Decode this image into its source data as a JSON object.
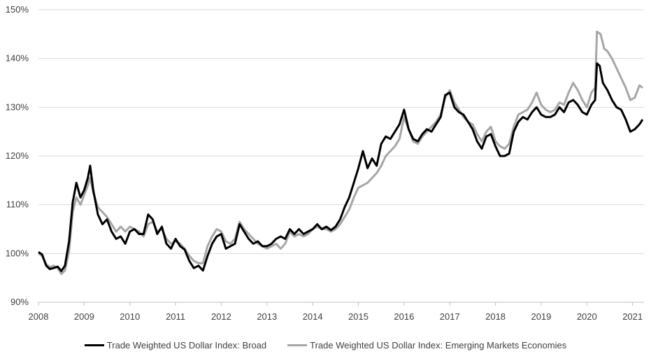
{
  "chart_data": {
    "type": "line",
    "title": "",
    "xlabel": "",
    "ylabel": "",
    "x_ticks": [
      "2008",
      "2009",
      "2010",
      "2011",
      "2012",
      "2013",
      "2014",
      "2015",
      "2016",
      "2017",
      "2018",
      "2019",
      "2020",
      "2021"
    ],
    "y_ticks": [
      "90%",
      "100%",
      "110%",
      "120%",
      "130%",
      "140%",
      "150%"
    ],
    "xlim": [
      2008.0,
      2021.25
    ],
    "ylim": [
      90,
      150
    ],
    "grid": "horizontal",
    "legend_position": "bottom",
    "series": [
      {
        "name": "Trade Weighted US Dollar Index: Broad",
        "color": "#000000",
        "points": [
          [
            2008.0,
            100.3
          ],
          [
            2008.08,
            99.8
          ],
          [
            2008.17,
            97.5
          ],
          [
            2008.25,
            96.8
          ],
          [
            2008.33,
            97.0
          ],
          [
            2008.42,
            97.3
          ],
          [
            2008.5,
            96.4
          ],
          [
            2008.58,
            97.5
          ],
          [
            2008.67,
            102.5
          ],
          [
            2008.75,
            110.5
          ],
          [
            2008.83,
            114.5
          ],
          [
            2008.92,
            111.5
          ],
          [
            2009.0,
            113.0
          ],
          [
            2009.08,
            115.5
          ],
          [
            2009.13,
            118.0
          ],
          [
            2009.2,
            113.0
          ],
          [
            2009.3,
            108.0
          ],
          [
            2009.4,
            106.0
          ],
          [
            2009.5,
            107.0
          ],
          [
            2009.6,
            104.5
          ],
          [
            2009.7,
            103.0
          ],
          [
            2009.8,
            103.5
          ],
          [
            2009.9,
            102.0
          ],
          [
            2010.0,
            104.5
          ],
          [
            2010.1,
            105.0
          ],
          [
            2010.2,
            104.0
          ],
          [
            2010.3,
            104.0
          ],
          [
            2010.4,
            108.0
          ],
          [
            2010.5,
            107.0
          ],
          [
            2010.6,
            104.0
          ],
          [
            2010.7,
            105.5
          ],
          [
            2010.8,
            102.0
          ],
          [
            2010.9,
            101.0
          ],
          [
            2011.0,
            103.0
          ],
          [
            2011.1,
            101.5
          ],
          [
            2011.2,
            100.8
          ],
          [
            2011.3,
            98.5
          ],
          [
            2011.4,
            97.0
          ],
          [
            2011.5,
            97.5
          ],
          [
            2011.6,
            96.5
          ],
          [
            2011.7,
            99.5
          ],
          [
            2011.8,
            102.0
          ],
          [
            2011.9,
            103.5
          ],
          [
            2012.0,
            104.0
          ],
          [
            2012.1,
            101.0
          ],
          [
            2012.2,
            101.5
          ],
          [
            2012.3,
            102.0
          ],
          [
            2012.4,
            106.0
          ],
          [
            2012.5,
            104.5
          ],
          [
            2012.6,
            103.0
          ],
          [
            2012.7,
            102.0
          ],
          [
            2012.8,
            102.5
          ],
          [
            2012.9,
            101.5
          ],
          [
            2013.0,
            101.5
          ],
          [
            2013.1,
            102.0
          ],
          [
            2013.2,
            103.0
          ],
          [
            2013.3,
            103.5
          ],
          [
            2013.4,
            103.0
          ],
          [
            2013.5,
            105.0
          ],
          [
            2013.6,
            104.0
          ],
          [
            2013.7,
            105.0
          ],
          [
            2013.8,
            104.0
          ],
          [
            2013.9,
            104.5
          ],
          [
            2014.0,
            105.0
          ],
          [
            2014.1,
            106.0
          ],
          [
            2014.2,
            105.0
          ],
          [
            2014.3,
            105.5
          ],
          [
            2014.4,
            104.8
          ],
          [
            2014.5,
            105.5
          ],
          [
            2014.6,
            107.0
          ],
          [
            2014.7,
            109.5
          ],
          [
            2014.8,
            111.5
          ],
          [
            2014.9,
            114.5
          ],
          [
            2015.0,
            117.5
          ],
          [
            2015.1,
            121.0
          ],
          [
            2015.2,
            117.5
          ],
          [
            2015.3,
            119.5
          ],
          [
            2015.4,
            118.0
          ],
          [
            2015.5,
            122.5
          ],
          [
            2015.6,
            124.0
          ],
          [
            2015.7,
            123.5
          ],
          [
            2015.8,
            125.0
          ],
          [
            2015.9,
            126.5
          ],
          [
            2016.0,
            129.5
          ],
          [
            2016.1,
            125.5
          ],
          [
            2016.2,
            123.5
          ],
          [
            2016.3,
            123.0
          ],
          [
            2016.4,
            124.5
          ],
          [
            2016.5,
            125.5
          ],
          [
            2016.6,
            125.0
          ],
          [
            2016.7,
            126.5
          ],
          [
            2016.8,
            128.0
          ],
          [
            2016.9,
            132.5
          ],
          [
            2017.0,
            133.0
          ],
          [
            2017.1,
            130.0
          ],
          [
            2017.2,
            129.0
          ],
          [
            2017.3,
            128.5
          ],
          [
            2017.4,
            127.0
          ],
          [
            2017.5,
            125.5
          ],
          [
            2017.6,
            123.0
          ],
          [
            2017.7,
            121.5
          ],
          [
            2017.8,
            124.0
          ],
          [
            2017.9,
            124.5
          ],
          [
            2018.0,
            122.0
          ],
          [
            2018.1,
            120.0
          ],
          [
            2018.2,
            120.0
          ],
          [
            2018.3,
            120.5
          ],
          [
            2018.4,
            125.0
          ],
          [
            2018.5,
            127.0
          ],
          [
            2018.6,
            128.0
          ],
          [
            2018.7,
            127.5
          ],
          [
            2018.8,
            129.0
          ],
          [
            2018.9,
            130.0
          ],
          [
            2019.0,
            128.5
          ],
          [
            2019.1,
            128.0
          ],
          [
            2019.2,
            128.0
          ],
          [
            2019.3,
            128.5
          ],
          [
            2019.4,
            130.0
          ],
          [
            2019.5,
            129.0
          ],
          [
            2019.6,
            131.0
          ],
          [
            2019.7,
            131.5
          ],
          [
            2019.8,
            130.5
          ],
          [
            2019.9,
            129.0
          ],
          [
            2020.0,
            128.5
          ],
          [
            2020.1,
            130.5
          ],
          [
            2020.18,
            131.5
          ],
          [
            2020.22,
            139.0
          ],
          [
            2020.28,
            138.5
          ],
          [
            2020.35,
            135.0
          ],
          [
            2020.45,
            133.5
          ],
          [
            2020.55,
            131.5
          ],
          [
            2020.65,
            130.0
          ],
          [
            2020.75,
            129.5
          ],
          [
            2020.85,
            127.5
          ],
          [
            2020.95,
            125.0
          ],
          [
            2021.05,
            125.5
          ],
          [
            2021.15,
            126.5
          ],
          [
            2021.22,
            127.5
          ]
        ]
      },
      {
        "name": "Trade Weighted US Dollar Index: Emerging Markets Economies",
        "color": "#a6a6a6",
        "points": [
          [
            2008.0,
            100.0
          ],
          [
            2008.08,
            99.5
          ],
          [
            2008.17,
            97.8
          ],
          [
            2008.25,
            97.2
          ],
          [
            2008.33,
            97.5
          ],
          [
            2008.42,
            97.0
          ],
          [
            2008.5,
            95.8
          ],
          [
            2008.58,
            96.5
          ],
          [
            2008.67,
            100.5
          ],
          [
            2008.75,
            108.5
          ],
          [
            2008.83,
            111.5
          ],
          [
            2008.92,
            110.0
          ],
          [
            2009.0,
            112.0
          ],
          [
            2009.08,
            114.0
          ],
          [
            2009.13,
            115.5
          ],
          [
            2009.2,
            112.5
          ],
          [
            2009.3,
            109.5
          ],
          [
            2009.4,
            108.5
          ],
          [
            2009.5,
            107.5
          ],
          [
            2009.6,
            106.0
          ],
          [
            2009.7,
            104.5
          ],
          [
            2009.8,
            105.5
          ],
          [
            2009.9,
            104.5
          ],
          [
            2010.0,
            105.5
          ],
          [
            2010.1,
            105.0
          ],
          [
            2010.2,
            104.5
          ],
          [
            2010.3,
            103.5
          ],
          [
            2010.4,
            106.0
          ],
          [
            2010.5,
            106.5
          ],
          [
            2010.6,
            104.5
          ],
          [
            2010.7,
            105.0
          ],
          [
            2010.8,
            103.0
          ],
          [
            2010.9,
            102.0
          ],
          [
            2011.0,
            102.5
          ],
          [
            2011.1,
            102.0
          ],
          [
            2011.2,
            101.0
          ],
          [
            2011.3,
            99.5
          ],
          [
            2011.4,
            98.5
          ],
          [
            2011.5,
            98.0
          ],
          [
            2011.6,
            98.0
          ],
          [
            2011.7,
            101.5
          ],
          [
            2011.8,
            103.5
          ],
          [
            2011.9,
            105.0
          ],
          [
            2012.0,
            104.5
          ],
          [
            2012.1,
            102.5
          ],
          [
            2012.2,
            102.0
          ],
          [
            2012.3,
            103.0
          ],
          [
            2012.4,
            106.5
          ],
          [
            2012.5,
            105.0
          ],
          [
            2012.6,
            104.0
          ],
          [
            2012.7,
            103.0
          ],
          [
            2012.8,
            102.0
          ],
          [
            2012.9,
            101.5
          ],
          [
            2013.0,
            101.0
          ],
          [
            2013.1,
            101.5
          ],
          [
            2013.2,
            102.0
          ],
          [
            2013.3,
            101.0
          ],
          [
            2013.4,
            102.0
          ],
          [
            2013.5,
            104.5
          ],
          [
            2013.6,
            103.5
          ],
          [
            2013.7,
            104.0
          ],
          [
            2013.8,
            103.5
          ],
          [
            2013.9,
            104.0
          ],
          [
            2014.0,
            105.0
          ],
          [
            2014.1,
            105.5
          ],
          [
            2014.2,
            105.0
          ],
          [
            2014.3,
            105.0
          ],
          [
            2014.4,
            104.5
          ],
          [
            2014.5,
            105.0
          ],
          [
            2014.6,
            106.0
          ],
          [
            2014.7,
            107.5
          ],
          [
            2014.8,
            109.0
          ],
          [
            2014.9,
            111.5
          ],
          [
            2015.0,
            113.5
          ],
          [
            2015.1,
            114.0
          ],
          [
            2015.2,
            114.5
          ],
          [
            2015.3,
            115.5
          ],
          [
            2015.4,
            116.5
          ],
          [
            2015.5,
            118.0
          ],
          [
            2015.6,
            120.0
          ],
          [
            2015.7,
            121.0
          ],
          [
            2015.8,
            122.0
          ],
          [
            2015.9,
            123.5
          ],
          [
            2016.0,
            128.0
          ],
          [
            2016.1,
            125.5
          ],
          [
            2016.2,
            123.0
          ],
          [
            2016.3,
            122.5
          ],
          [
            2016.4,
            124.0
          ],
          [
            2016.5,
            125.0
          ],
          [
            2016.6,
            126.0
          ],
          [
            2016.7,
            127.0
          ],
          [
            2016.8,
            128.5
          ],
          [
            2016.9,
            132.0
          ],
          [
            2017.0,
            133.5
          ],
          [
            2017.1,
            131.0
          ],
          [
            2017.2,
            129.5
          ],
          [
            2017.3,
            128.0
          ],
          [
            2017.4,
            127.0
          ],
          [
            2017.5,
            126.5
          ],
          [
            2017.6,
            124.5
          ],
          [
            2017.7,
            123.0
          ],
          [
            2017.8,
            125.0
          ],
          [
            2017.9,
            126.0
          ],
          [
            2018.0,
            123.0
          ],
          [
            2018.1,
            122.0
          ],
          [
            2018.2,
            121.5
          ],
          [
            2018.3,
            122.5
          ],
          [
            2018.4,
            126.0
          ],
          [
            2018.5,
            128.5
          ],
          [
            2018.6,
            129.0
          ],
          [
            2018.7,
            129.5
          ],
          [
            2018.8,
            131.0
          ],
          [
            2018.9,
            133.0
          ],
          [
            2019.0,
            130.5
          ],
          [
            2019.1,
            129.5
          ],
          [
            2019.2,
            129.0
          ],
          [
            2019.3,
            129.5
          ],
          [
            2019.4,
            131.0
          ],
          [
            2019.5,
            130.5
          ],
          [
            2019.6,
            133.0
          ],
          [
            2019.7,
            135.0
          ],
          [
            2019.8,
            133.5
          ],
          [
            2019.9,
            131.5
          ],
          [
            2020.0,
            130.0
          ],
          [
            2020.1,
            133.0
          ],
          [
            2020.18,
            134.0
          ],
          [
            2020.22,
            145.5
          ],
          [
            2020.3,
            145.0
          ],
          [
            2020.38,
            142.0
          ],
          [
            2020.45,
            141.5
          ],
          [
            2020.55,
            140.0
          ],
          [
            2020.65,
            138.0
          ],
          [
            2020.75,
            136.0
          ],
          [
            2020.85,
            134.0
          ],
          [
            2020.95,
            131.5
          ],
          [
            2021.05,
            132.0
          ],
          [
            2021.15,
            134.5
          ],
          [
            2021.22,
            134.0
          ]
        ]
      }
    ]
  }
}
